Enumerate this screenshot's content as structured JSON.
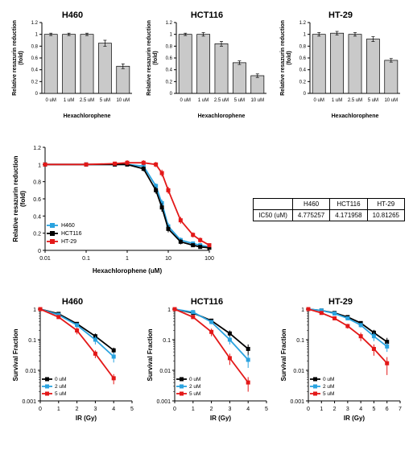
{
  "row1": {
    "ylabel": "Relative resazurin reduction\n(fold)",
    "xlabel": "Hexachlorophene",
    "ylim": [
      0,
      1.2
    ],
    "yticks": [
      0,
      0.2,
      0.4,
      0.6,
      0.8,
      1,
      1.2
    ],
    "label_fontsize": 7,
    "tick_fontsize": 6,
    "title_fontsize": 11,
    "bar_fill": "#c9c9c9",
    "bar_stroke": "#000000",
    "bar_width": 0.72,
    "categories": [
      "0 uM",
      "1 uM",
      "2.5 uM",
      "5 uM",
      "10 uM"
    ],
    "panels": [
      {
        "title": "H460",
        "values": [
          1.0,
          1.0,
          1.0,
          0.85,
          0.46
        ],
        "errors": [
          0.02,
          0.02,
          0.02,
          0.05,
          0.04
        ]
      },
      {
        "title": "HCT116",
        "values": [
          1.0,
          1.0,
          0.84,
          0.52,
          0.3
        ],
        "errors": [
          0.02,
          0.03,
          0.04,
          0.03,
          0.03
        ]
      },
      {
        "title": "HT-29",
        "values": [
          1.0,
          1.02,
          1.0,
          0.92,
          0.56
        ],
        "errors": [
          0.03,
          0.03,
          0.03,
          0.04,
          0.03
        ]
      }
    ]
  },
  "row2": {
    "title": "",
    "ylabel": "Relative resazurin reduction\n(fold)",
    "xlabel": "Hexachlorophene (uM)",
    "ylim": [
      0,
      1.2
    ],
    "yticks": [
      0,
      0.2,
      0.4,
      0.6,
      0.8,
      1,
      1.2
    ],
    "xlog": true,
    "xticks": [
      0.01,
      0.1,
      1,
      10,
      100
    ],
    "xlim": [
      0.01,
      100
    ],
    "label_fontsize": 8,
    "tick_fontsize": 7,
    "grid_color": "#e8e8e8",
    "series": [
      {
        "name": "H460",
        "color": "#2aa3e0",
        "x": [
          0.01,
          0.1,
          0.5,
          1,
          2.5,
          5,
          7,
          10,
          20,
          40,
          60,
          100
        ],
        "y": [
          1.0,
          1.0,
          1.0,
          1.0,
          0.98,
          0.75,
          0.55,
          0.28,
          0.12,
          0.08,
          0.06,
          0.04
        ],
        "err": [
          0.02,
          0.02,
          0.02,
          0.02,
          0.03,
          0.03,
          0.04,
          0.04,
          0.03,
          0.02,
          0.02,
          0.02
        ]
      },
      {
        "name": "HCT116",
        "color": "#000000",
        "x": [
          0.01,
          0.1,
          0.5,
          1,
          2.5,
          5,
          7,
          10,
          20,
          40,
          60,
          100
        ],
        "y": [
          1.0,
          1.0,
          1.0,
          1.0,
          0.95,
          0.7,
          0.5,
          0.25,
          0.1,
          0.06,
          0.04,
          0.03
        ],
        "err": [
          0.02,
          0.02,
          0.02,
          0.02,
          0.03,
          0.04,
          0.05,
          0.04,
          0.03,
          0.02,
          0.02,
          0.02
        ]
      },
      {
        "name": "HT-29",
        "color": "#e31818",
        "x": [
          0.01,
          0.1,
          0.5,
          1,
          2.5,
          5,
          7,
          10,
          20,
          40,
          60,
          100
        ],
        "y": [
          1.0,
          1.0,
          1.01,
          1.02,
          1.02,
          1.0,
          0.9,
          0.7,
          0.35,
          0.18,
          0.12,
          0.06
        ],
        "err": [
          0.02,
          0.02,
          0.02,
          0.03,
          0.03,
          0.03,
          0.04,
          0.04,
          0.04,
          0.03,
          0.03,
          0.02
        ]
      }
    ],
    "ic50": {
      "header_label": "IC50 (uM)",
      "columns": [
        "H460",
        "HCT116",
        "HT-29"
      ],
      "values": [
        "4.775257",
        "4.171958",
        "10.81265"
      ]
    }
  },
  "row3": {
    "ylabel": "Survival Fraction",
    "xlabel": "IR (Gy)",
    "ylog": true,
    "ylim": [
      0.001,
      1
    ],
    "yticks": [
      0.001,
      0.01,
      0.1,
      1
    ],
    "label_fontsize": 8,
    "tick_fontsize": 7,
    "title_fontsize": 11,
    "legend": [
      "0 uM",
      "2 uM",
      "5 uM"
    ],
    "colors": {
      "0 uM": "#000000",
      "2 uM": "#2aa3e0",
      "5 uM": "#e31818"
    },
    "panels": [
      {
        "title": "H460",
        "xlim": [
          0,
          5
        ],
        "xticks": [
          0,
          1,
          2,
          3,
          4,
          5
        ],
        "series": {
          "0 uM": {
            "x": [
              0,
              1,
              2,
              3,
              4
            ],
            "y": [
              1,
              0.7,
              0.33,
              0.13,
              0.045
            ],
            "err": [
              0,
              0.05,
              0.04,
              0.03,
              0.01
            ]
          },
          "2 uM": {
            "x": [
              0,
              1,
              2,
              3,
              4
            ],
            "y": [
              1,
              0.65,
              0.3,
              0.1,
              0.028
            ],
            "err": [
              0,
              0.05,
              0.05,
              0.03,
              0.01
            ]
          },
          "5 uM": {
            "x": [
              0,
              1,
              2,
              3,
              4
            ],
            "y": [
              1,
              0.55,
              0.2,
              0.035,
              0.0055
            ],
            "err": [
              0,
              0.06,
              0.05,
              0.01,
              0.002
            ]
          }
        }
      },
      {
        "title": "HCT116",
        "xlim": [
          0,
          5
        ],
        "xticks": [
          0,
          1,
          2,
          3,
          4,
          5
        ],
        "series": {
          "0 uM": {
            "x": [
              0,
              1,
              2,
              3,
              4
            ],
            "y": [
              1,
              0.75,
              0.42,
              0.16,
              0.05
            ],
            "err": [
              0,
              0.06,
              0.06,
              0.04,
              0.02
            ]
          },
          "2 uM": {
            "x": [
              0,
              1,
              2,
              3,
              4
            ],
            "y": [
              1,
              0.8,
              0.38,
              0.1,
              0.022
            ],
            "err": [
              0,
              0.06,
              0.06,
              0.03,
              0.01
            ]
          },
          "5 uM": {
            "x": [
              0,
              1,
              2,
              3,
              4
            ],
            "y": [
              1,
              0.55,
              0.18,
              0.025,
              0.004
            ],
            "err": [
              0,
              0.06,
              0.05,
              0.01,
              0.002
            ]
          }
        }
      },
      {
        "title": "HT-29",
        "xlim": [
          0,
          7
        ],
        "xticks": [
          0,
          1,
          2,
          3,
          4,
          5,
          6,
          7
        ],
        "series": {
          "0 uM": {
            "x": [
              0,
              1,
              2,
              3,
              4,
              5,
              6
            ],
            "y": [
              1,
              0.9,
              0.75,
              0.55,
              0.35,
              0.17,
              0.085
            ],
            "err": [
              0,
              0.04,
              0.05,
              0.05,
              0.05,
              0.04,
              0.03
            ]
          },
          "2 uM": {
            "x": [
              0,
              1,
              2,
              3,
              4,
              5,
              6
            ],
            "y": [
              1,
              0.9,
              0.72,
              0.5,
              0.3,
              0.13,
              0.06
            ],
            "err": [
              0,
              0.04,
              0.05,
              0.05,
              0.05,
              0.04,
              0.02
            ]
          },
          "5 uM": {
            "x": [
              0,
              1,
              2,
              3,
              4,
              5,
              6
            ],
            "y": [
              1,
              0.75,
              0.5,
              0.28,
              0.13,
              0.05,
              0.017
            ],
            "err": [
              0,
              0.05,
              0.05,
              0.05,
              0.04,
              0.02,
              0.01
            ]
          }
        }
      }
    ]
  }
}
